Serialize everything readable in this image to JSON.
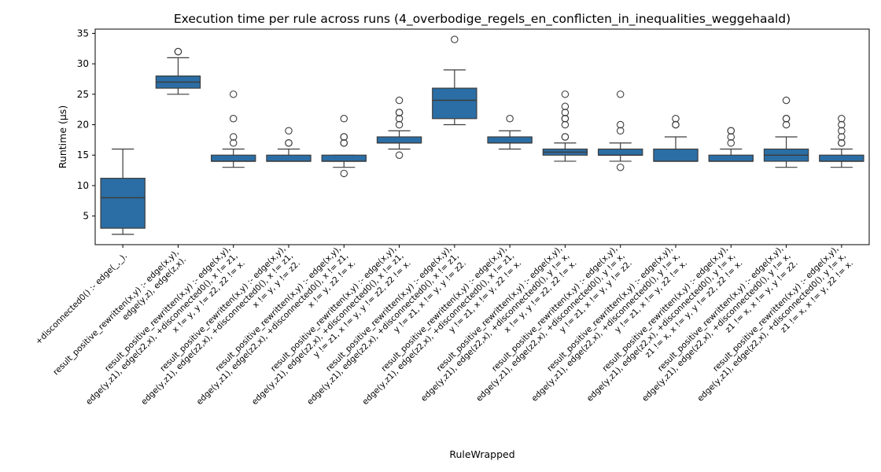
{
  "chart_data": {
    "type": "box",
    "title": "Execution time per rule across runs (4_overbodige_regels_en_conflicten_in_inequalities_weggehaald)",
    "xlabel": "RuleWrapped",
    "ylabel": "Runtime (µs)",
    "ylim": [
      0.3,
      35.7
    ],
    "yticks": [
      5,
      10,
      15,
      20,
      25,
      30,
      35
    ],
    "grid": false,
    "box_color": "#2b6ea5",
    "categories": [
      [
        "+disconnected0() :-     edge(_,_)."
      ],
      [
        "result_positive_rewritten(x,y) :-     edge(x,y),",
        "edge(y,z),     edge(z,x)."
      ],
      [
        "result_positive_rewritten(x,y) :-     edge(x,y),",
        "edge(y,z1),   edge(z2,x),   +disconnected0(),   x != z1,",
        "x != y,   y != z2,   z2 != x."
      ],
      [
        "result_positive_rewritten(x,y) :-     edge(x,y),",
        "edge(y,z1),   edge(z2,x),   +disconnected0(),   x != z1,",
        "x != y,   y != z2."
      ],
      [
        "result_positive_rewritten(x,y) :-     edge(x,y),",
        "edge(y,z1),   edge(z2,x),   +disconnected0(),   x != z1,",
        "x != y,   z2 != x."
      ],
      [
        "result_positive_rewritten(x,y) :-     edge(x,y),",
        "edge(y,z1),   edge(z2,x),   +disconnected0(),   x != z1,",
        "y != z1,   x != y,   y != z2,   z2 != x."
      ],
      [
        "result_positive_rewritten(x,y) :-     edge(x,y),",
        "edge(y,z1),   edge(z2,x),   +disconnected0(),   x != z1,",
        "y != z1,   x != y,   y != z2."
      ],
      [
        "result_positive_rewritten(x,y) :-     edge(x,y),",
        "edge(y,z1),   edge(z2,x),   +disconnected0(),   x != z1,",
        "y != z1,   x != y,   z2 != x."
      ],
      [
        "result_positive_rewritten(x,y) :-     edge(x,y),",
        "edge(y,z1),   edge(z2,x),   +disconnected0(),   y != x,",
        "x != y,   y != z2,   z2 != x."
      ],
      [
        "result_positive_rewritten(x,y) :-     edge(x,y),",
        "edge(y,z1),   edge(z2,x),   +disconnected0(),   y != x,",
        "y != z1,   x != y,   y != z2."
      ],
      [
        "result_positive_rewritten(x,y) :-     edge(x,y),",
        "edge(y,z1),   edge(z2,x),   +disconnected0(),   y != x,",
        "y != z1,   x != y,   z2 != x."
      ],
      [
        "result_positive_rewritten(x,y) :-     edge(x,y),",
        "edge(y,z1),   edge(z2,x),   +disconnected0(),   y != x,",
        "z1 != x,   x != y,   y != z2,   z2 != x."
      ],
      [
        "result_positive_rewritten(x,y) :-     edge(x,y),",
        "edge(y,z1),   edge(z2,x),   +disconnected0(),   y != x,",
        "z1 != x,   x != y,   y != z2."
      ],
      [
        "result_positive_rewritten(x,y) :-     edge(x,y),",
        "edge(y,z1),   edge(z2,x),   +disconnected0(),   y != x,",
        "z1 != x,   x != y,   z2 != x."
      ]
    ],
    "boxes": [
      {
        "min": 2,
        "q1": 3,
        "median": 8,
        "q3": 11.2,
        "max": 16,
        "outliers": []
      },
      {
        "min": 25,
        "q1": 26,
        "median": 27,
        "q3": 28,
        "max": 31,
        "outliers": [
          32,
          32
        ]
      },
      {
        "min": 13,
        "q1": 14,
        "median": 14,
        "q3": 15,
        "max": 16,
        "outliers": [
          17,
          18,
          21,
          25
        ]
      },
      {
        "min": 14,
        "q1": 14,
        "median": 14,
        "q3": 15,
        "max": 16,
        "outliers": [
          17,
          17,
          19
        ]
      },
      {
        "min": 13,
        "q1": 14,
        "median": 14,
        "q3": 15,
        "max": 15,
        "outliers": [
          12,
          17,
          17,
          18,
          18,
          21
        ]
      },
      {
        "min": 16,
        "q1": 17,
        "median": 17,
        "q3": 18,
        "max": 19,
        "outliers": [
          15,
          20,
          21,
          22,
          22,
          24
        ]
      },
      {
        "min": 20,
        "q1": 21,
        "median": 24,
        "q3": 26,
        "max": 29,
        "outliers": [
          34
        ]
      },
      {
        "min": 16,
        "q1": 17,
        "median": 17,
        "q3": 18,
        "max": 19,
        "outliers": [
          21
        ]
      },
      {
        "min": 14,
        "q1": 15,
        "median": 15.5,
        "q3": 16,
        "max": 17,
        "outliers": [
          18,
          18,
          20,
          21,
          21,
          22,
          23,
          25
        ]
      },
      {
        "min": 14,
        "q1": 15,
        "median": 15,
        "q3": 16,
        "max": 17,
        "outliers": [
          13,
          19,
          20,
          25
        ]
      },
      {
        "min": 14,
        "q1": 14,
        "median": 14,
        "q3": 16,
        "max": 18,
        "outliers": [
          20,
          20,
          21
        ]
      },
      {
        "min": 14,
        "q1": 14,
        "median": 14,
        "q3": 15,
        "max": 16,
        "outliers": [
          17,
          18,
          19,
          19
        ]
      },
      {
        "min": 13,
        "q1": 14,
        "median": 15,
        "q3": 16,
        "max": 18,
        "outliers": [
          20,
          21,
          21,
          24
        ]
      },
      {
        "min": 13,
        "q1": 14,
        "median": 14,
        "q3": 15,
        "max": 16,
        "outliers": [
          17,
          17,
          18,
          19,
          20,
          21
        ]
      }
    ]
  }
}
